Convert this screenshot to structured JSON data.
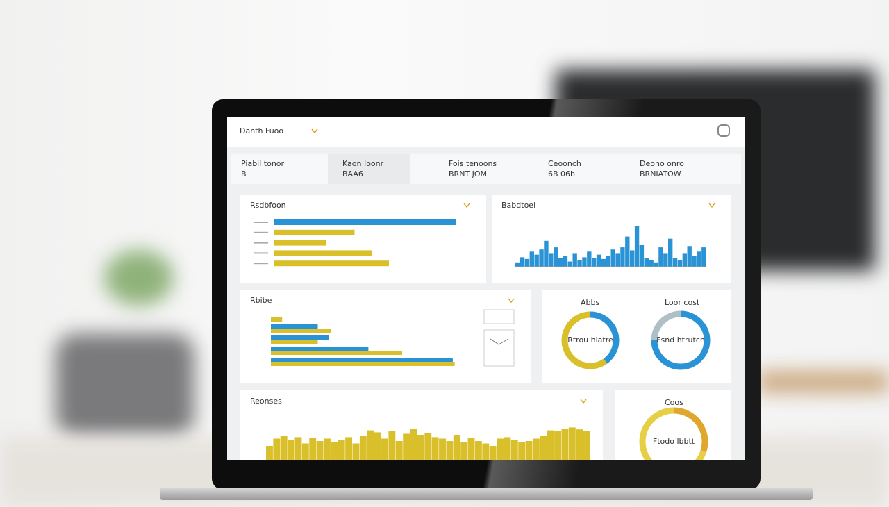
{
  "header": {
    "title": "Danth Fuoo"
  },
  "kpis": [
    {
      "label": "Piabil tonor",
      "value": "B"
    },
    {
      "label": "Kaon Ioonr",
      "value": "BAA6"
    },
    {
      "label": "Fois tenoons",
      "value": "BRNT JOM"
    },
    {
      "label": "Ceoonch",
      "value": "6B 06b"
    },
    {
      "label": "Deono onro",
      "value": "BRNIATOW"
    }
  ],
  "panels": [
    {
      "title": "Rsdbfoon",
      "values": [
        95,
        42,
        27,
        51,
        60
      ]
    },
    {
      "title": "Babdtoel",
      "values": [
        10,
        22,
        18,
        35,
        28,
        40,
        60,
        30,
        45,
        20,
        25,
        12,
        30,
        15,
        22,
        35,
        20,
        28,
        18,
        25,
        40,
        30,
        45,
        70,
        38,
        95,
        50,
        20,
        15,
        10,
        45,
        30,
        65,
        20,
        15,
        30,
        48,
        25,
        35,
        45
      ]
    },
    {
      "title": "Rbibe",
      "series": [
        {
          "values": [
            0,
            25,
            31,
            52,
            97
          ]
        },
        {
          "values": [
            6,
            32,
            25,
            70,
            98
          ]
        }
      ]
    },
    {
      "title": "Abbs",
      "center": "Rtrou hiatre",
      "values": [
        40,
        60
      ]
    },
    {
      "title": "Loor cost",
      "center": "Fsnd htrutcn",
      "values": [
        75,
        25
      ]
    },
    {
      "title": "Reonses",
      "values": [
        30,
        45,
        50,
        42,
        48,
        35,
        46,
        40,
        45,
        38,
        42,
        48,
        35,
        50,
        62,
        58,
        45,
        60,
        40,
        55,
        65,
        52,
        56,
        48,
        45,
        40,
        52,
        38,
        46,
        40,
        35,
        30,
        45,
        48,
        42,
        38,
        40,
        45,
        50,
        62,
        60,
        65,
        68,
        64,
        60
      ]
    },
    {
      "title": "Coos",
      "center": "Ftodo lbbtt",
      "values": [
        30,
        70
      ]
    }
  ]
}
